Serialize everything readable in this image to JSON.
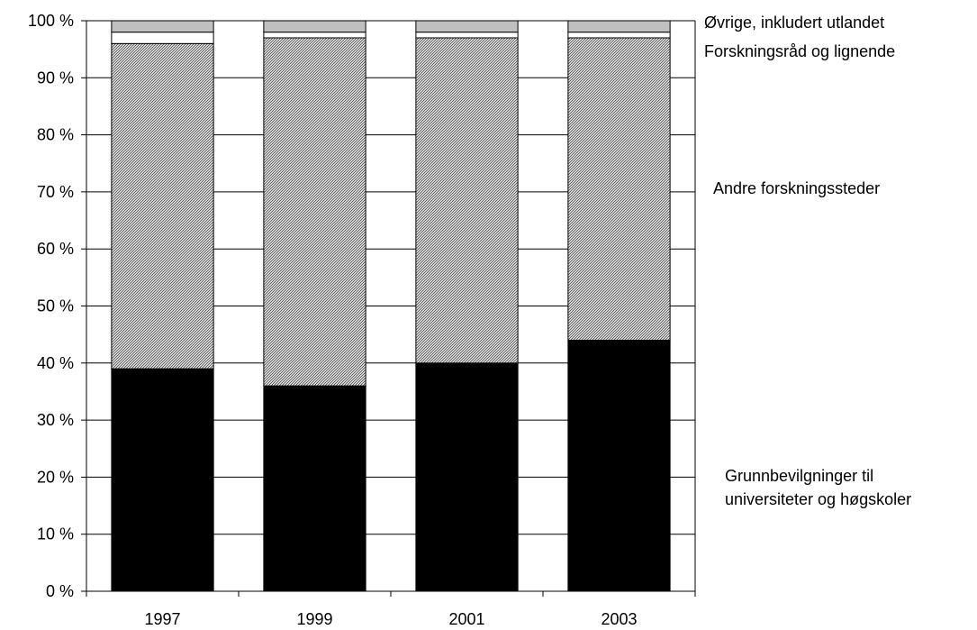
{
  "chart_data": {
    "type": "bar",
    "stacked": true,
    "percent_stacked": true,
    "title": "",
    "xlabel": "",
    "ylabel": "",
    "categories": [
      "1997",
      "1999",
      "2001",
      "2003"
    ],
    "ylim": [
      0,
      100
    ],
    "yticks": [
      0,
      10,
      20,
      30,
      40,
      50,
      60,
      70,
      80,
      90,
      100
    ],
    "ytick_labels": [
      "0 %",
      "10 %",
      "20 %",
      "30 %",
      "40 %",
      "50 %",
      "60 %",
      "70 %",
      "80 %",
      "90 %",
      "100 %"
    ],
    "grid": true,
    "legend_placement": "right",
    "series": [
      {
        "name": "Grunnbevilgninger til universiteter og høgskoler",
        "legend_lines": [
          "Grunnbevilgninger til",
          "universiteter og høgskoler"
        ],
        "values": [
          39,
          36,
          40,
          44
        ],
        "color": "#000000",
        "pattern": "solid"
      },
      {
        "name": "Andre forskningssteder",
        "legend_lines": [
          "Andre forskningssteder"
        ],
        "values": [
          57,
          61,
          57,
          53
        ],
        "color": "#808080",
        "pattern": "hatch"
      },
      {
        "name": "Forskningsråd og lignende",
        "legend_lines": [
          "Forskningsråd og lignende"
        ],
        "values": [
          2,
          1,
          1,
          1
        ],
        "color": "#ffffff",
        "pattern": "solid"
      },
      {
        "name": "Øvrige, inkludert utlandet",
        "legend_lines": [
          "Øvrige, inkludert utlandet"
        ],
        "values": [
          2,
          2,
          2,
          2
        ],
        "color": "#c0c0c0",
        "pattern": "solid"
      }
    ]
  }
}
